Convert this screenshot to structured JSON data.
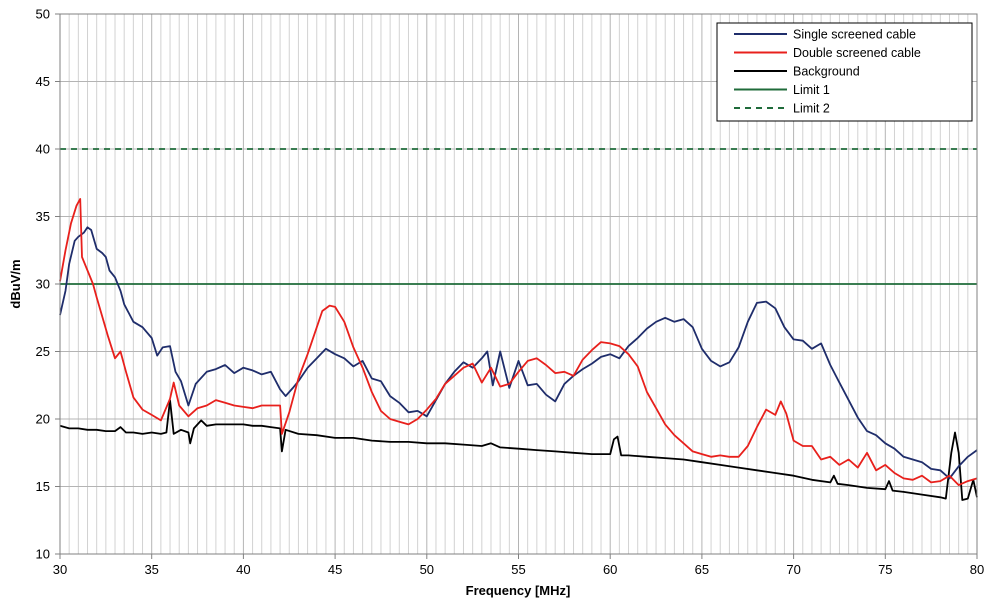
{
  "chart_data": {
    "type": "line",
    "xlabel": "Frequency [MHz]",
    "ylabel": "dBuV/m",
    "xlim": [
      30,
      80
    ],
    "ylim": [
      10,
      50
    ],
    "x_ticks": [
      30,
      35,
      40,
      45,
      50,
      55,
      60,
      65,
      70,
      75,
      80
    ],
    "y_ticks": [
      10,
      15,
      20,
      25,
      30,
      35,
      40,
      45,
      50
    ],
    "grid": "vertical minor every 0.5 MHz, horizontal every 5 dB",
    "legend_position": "top-right",
    "series": [
      {
        "name": "Single screened cable",
        "color": "#1f2d6b",
        "style": "solid",
        "points": [
          [
            30,
            27.7
          ],
          [
            30.3,
            29.5
          ],
          [
            30.5,
            31.5
          ],
          [
            30.8,
            33.2
          ],
          [
            31,
            33.5
          ],
          [
            31.3,
            33.8
          ],
          [
            31.5,
            34.2
          ],
          [
            31.7,
            34.0
          ],
          [
            32,
            32.6
          ],
          [
            32.3,
            32.3
          ],
          [
            32.5,
            32.0
          ],
          [
            32.7,
            31.0
          ],
          [
            33,
            30.5
          ],
          [
            33.3,
            29.5
          ],
          [
            33.5,
            28.5
          ],
          [
            34,
            27.2
          ],
          [
            34.5,
            26.8
          ],
          [
            35,
            26.0
          ],
          [
            35.3,
            24.7
          ],
          [
            35.6,
            25.3
          ],
          [
            36,
            25.4
          ],
          [
            36.3,
            23.5
          ],
          [
            36.6,
            22.8
          ],
          [
            37,
            21.0
          ],
          [
            37.4,
            22.6
          ],
          [
            38,
            23.5
          ],
          [
            38.5,
            23.7
          ],
          [
            39,
            24.0
          ],
          [
            39.5,
            23.4
          ],
          [
            40,
            23.8
          ],
          [
            40.5,
            23.6
          ],
          [
            41,
            23.3
          ],
          [
            41.5,
            23.5
          ],
          [
            42,
            22.2
          ],
          [
            42.3,
            21.7
          ],
          [
            42.7,
            22.3
          ],
          [
            43,
            22.8
          ],
          [
            43.5,
            23.8
          ],
          [
            44,
            24.5
          ],
          [
            44.5,
            25.2
          ],
          [
            45,
            24.8
          ],
          [
            45.5,
            24.5
          ],
          [
            46,
            23.9
          ],
          [
            46.5,
            24.3
          ],
          [
            47,
            23.0
          ],
          [
            47.5,
            22.8
          ],
          [
            48,
            21.7
          ],
          [
            48.5,
            21.2
          ],
          [
            49,
            20.5
          ],
          [
            49.5,
            20.6
          ],
          [
            50,
            20.2
          ],
          [
            50.5,
            21.4
          ],
          [
            51,
            22.6
          ],
          [
            51.5,
            23.5
          ],
          [
            52,
            24.2
          ],
          [
            52.5,
            23.8
          ],
          [
            53,
            24.5
          ],
          [
            53.3,
            25.0
          ],
          [
            53.6,
            22.5
          ],
          [
            54,
            25.0
          ],
          [
            54.5,
            22.3
          ],
          [
            55,
            24.3
          ],
          [
            55.5,
            22.5
          ],
          [
            56,
            22.6
          ],
          [
            56.5,
            21.8
          ],
          [
            57,
            21.3
          ],
          [
            57.5,
            22.6
          ],
          [
            58,
            23.2
          ],
          [
            58.5,
            23.7
          ],
          [
            59,
            24.1
          ],
          [
            59.5,
            24.6
          ],
          [
            60,
            24.8
          ],
          [
            60.5,
            24.5
          ],
          [
            61,
            25.4
          ],
          [
            61.5,
            26.0
          ],
          [
            62,
            26.7
          ],
          [
            62.5,
            27.2
          ],
          [
            63,
            27.5
          ],
          [
            63.5,
            27.2
          ],
          [
            64,
            27.4
          ],
          [
            64.5,
            26.8
          ],
          [
            65,
            25.2
          ],
          [
            65.5,
            24.3
          ],
          [
            66,
            23.9
          ],
          [
            66.5,
            24.2
          ],
          [
            67,
            25.3
          ],
          [
            67.5,
            27.2
          ],
          [
            68,
            28.6
          ],
          [
            68.5,
            28.7
          ],
          [
            69,
            28.2
          ],
          [
            69.5,
            26.8
          ],
          [
            70,
            25.9
          ],
          [
            70.5,
            25.8
          ],
          [
            71,
            25.2
          ],
          [
            71.5,
            25.6
          ],
          [
            72,
            24.0
          ],
          [
            72.5,
            22.7
          ],
          [
            73,
            21.4
          ],
          [
            73.5,
            20.1
          ],
          [
            74,
            19.1
          ],
          [
            74.5,
            18.8
          ],
          [
            75,
            18.2
          ],
          [
            75.5,
            17.8
          ],
          [
            76,
            17.2
          ],
          [
            76.5,
            17.0
          ],
          [
            77,
            16.8
          ],
          [
            77.5,
            16.3
          ],
          [
            78,
            16.2
          ],
          [
            78.5,
            15.6
          ],
          [
            79,
            16.5
          ],
          [
            79.5,
            17.2
          ],
          [
            80,
            17.7
          ]
        ]
      },
      {
        "name": "Double screened cable",
        "color": "#e8201c",
        "style": "solid",
        "points": [
          [
            30,
            30.2
          ],
          [
            30.3,
            32.5
          ],
          [
            30.6,
            34.5
          ],
          [
            30.9,
            35.8
          ],
          [
            31.1,
            36.3
          ],
          [
            31.2,
            32.0
          ],
          [
            31.5,
            31.0
          ],
          [
            31.8,
            30.0
          ],
          [
            32,
            29.0
          ],
          [
            32.3,
            27.6
          ],
          [
            32.6,
            26.2
          ],
          [
            33,
            24.5
          ],
          [
            33.3,
            25.0
          ],
          [
            33.6,
            23.5
          ],
          [
            34,
            21.6
          ],
          [
            34.5,
            20.7
          ],
          [
            35,
            20.3
          ],
          [
            35.5,
            19.9
          ],
          [
            36,
            21.5
          ],
          [
            36.2,
            22.7
          ],
          [
            36.5,
            21.0
          ],
          [
            37,
            20.2
          ],
          [
            37.5,
            20.8
          ],
          [
            38,
            21.0
          ],
          [
            38.5,
            21.4
          ],
          [
            39,
            21.2
          ],
          [
            39.5,
            21.0
          ],
          [
            40,
            20.9
          ],
          [
            40.5,
            20.8
          ],
          [
            41,
            21.0
          ],
          [
            41.5,
            21.0
          ],
          [
            42,
            21.0
          ],
          [
            42.1,
            18.9
          ],
          [
            42.5,
            20.5
          ],
          [
            43,
            23.0
          ],
          [
            43.5,
            24.8
          ],
          [
            44,
            26.8
          ],
          [
            44.3,
            28.0
          ],
          [
            44.7,
            28.4
          ],
          [
            45,
            28.3
          ],
          [
            45.5,
            27.2
          ],
          [
            46,
            25.3
          ],
          [
            46.5,
            23.8
          ],
          [
            47,
            22.0
          ],
          [
            47.5,
            20.6
          ],
          [
            48,
            20.0
          ],
          [
            48.5,
            19.8
          ],
          [
            49,
            19.6
          ],
          [
            49.5,
            20.0
          ],
          [
            50,
            20.7
          ],
          [
            50.5,
            21.5
          ],
          [
            51,
            22.6
          ],
          [
            51.5,
            23.2
          ],
          [
            52,
            23.8
          ],
          [
            52.5,
            24.1
          ],
          [
            53,
            22.7
          ],
          [
            53.5,
            23.8
          ],
          [
            54,
            22.4
          ],
          [
            54.5,
            22.6
          ],
          [
            55,
            23.5
          ],
          [
            55.5,
            24.3
          ],
          [
            56,
            24.5
          ],
          [
            56.5,
            24.0
          ],
          [
            57,
            23.4
          ],
          [
            57.5,
            23.5
          ],
          [
            58,
            23.2
          ],
          [
            58.5,
            24.4
          ],
          [
            59,
            25.1
          ],
          [
            59.5,
            25.7
          ],
          [
            60,
            25.6
          ],
          [
            60.5,
            25.4
          ],
          [
            61,
            24.8
          ],
          [
            61.5,
            23.9
          ],
          [
            62,
            22.0
          ],
          [
            62.5,
            20.8
          ],
          [
            63,
            19.6
          ],
          [
            63.5,
            18.8
          ],
          [
            64,
            18.2
          ],
          [
            64.5,
            17.6
          ],
          [
            65,
            17.4
          ],
          [
            65.5,
            17.2
          ],
          [
            66,
            17.3
          ],
          [
            66.5,
            17.2
          ],
          [
            67,
            17.2
          ],
          [
            67.5,
            18.0
          ],
          [
            68,
            19.4
          ],
          [
            68.5,
            20.7
          ],
          [
            69,
            20.3
          ],
          [
            69.3,
            21.3
          ],
          [
            69.6,
            20.4
          ],
          [
            70,
            18.4
          ],
          [
            70.5,
            18.0
          ],
          [
            71,
            18.0
          ],
          [
            71.5,
            17.0
          ],
          [
            72,
            17.2
          ],
          [
            72.5,
            16.6
          ],
          [
            73,
            17.0
          ],
          [
            73.5,
            16.4
          ],
          [
            74,
            17.5
          ],
          [
            74.5,
            16.2
          ],
          [
            75,
            16.6
          ],
          [
            75.5,
            16.0
          ],
          [
            76,
            15.6
          ],
          [
            76.5,
            15.5
          ],
          [
            77,
            15.8
          ],
          [
            77.5,
            15.3
          ],
          [
            78,
            15.4
          ],
          [
            78.5,
            15.8
          ],
          [
            79,
            15.1
          ],
          [
            79.5,
            15.4
          ],
          [
            80,
            15.6
          ]
        ]
      },
      {
        "name": "Background",
        "color": "#000000",
        "style": "solid",
        "points": [
          [
            30,
            19.5
          ],
          [
            30.5,
            19.3
          ],
          [
            31,
            19.3
          ],
          [
            31.5,
            19.2
          ],
          [
            32,
            19.2
          ],
          [
            32.5,
            19.1
          ],
          [
            33,
            19.1
          ],
          [
            33.3,
            19.4
          ],
          [
            33.6,
            19.0
          ],
          [
            34,
            19.0
          ],
          [
            34.5,
            18.9
          ],
          [
            35,
            19.0
          ],
          [
            35.5,
            18.9
          ],
          [
            35.8,
            19.0
          ],
          [
            36,
            21.4
          ],
          [
            36.2,
            18.9
          ],
          [
            36.6,
            19.2
          ],
          [
            37,
            19.0
          ],
          [
            37.1,
            18.2
          ],
          [
            37.3,
            19.3
          ],
          [
            37.7,
            19.9
          ],
          [
            38,
            19.5
          ],
          [
            38.5,
            19.6
          ],
          [
            39,
            19.6
          ],
          [
            39.5,
            19.6
          ],
          [
            40,
            19.6
          ],
          [
            40.5,
            19.5
          ],
          [
            41,
            19.5
          ],
          [
            41.5,
            19.4
          ],
          [
            42,
            19.3
          ],
          [
            42.1,
            17.6
          ],
          [
            42.3,
            19.2
          ],
          [
            43,
            18.9
          ],
          [
            44,
            18.8
          ],
          [
            45,
            18.6
          ],
          [
            46,
            18.6
          ],
          [
            47,
            18.4
          ],
          [
            48,
            18.3
          ],
          [
            49,
            18.3
          ],
          [
            50,
            18.2
          ],
          [
            51,
            18.2
          ],
          [
            52,
            18.1
          ],
          [
            53,
            18.0
          ],
          [
            53.5,
            18.2
          ],
          [
            54,
            17.9
          ],
          [
            55,
            17.8
          ],
          [
            56,
            17.7
          ],
          [
            57,
            17.6
          ],
          [
            58,
            17.5
          ],
          [
            59,
            17.4
          ],
          [
            60,
            17.4
          ],
          [
            60.2,
            18.5
          ],
          [
            60.4,
            18.7
          ],
          [
            60.6,
            17.3
          ],
          [
            61,
            17.3
          ],
          [
            62,
            17.2
          ],
          [
            63,
            17.1
          ],
          [
            64,
            17.0
          ],
          [
            65,
            16.8
          ],
          [
            66,
            16.6
          ],
          [
            67,
            16.4
          ],
          [
            68,
            16.2
          ],
          [
            69,
            16.0
          ],
          [
            70,
            15.8
          ],
          [
            71,
            15.5
          ],
          [
            72,
            15.3
          ],
          [
            72.2,
            15.8
          ],
          [
            72.4,
            15.2
          ],
          [
            73,
            15.1
          ],
          [
            74,
            14.9
          ],
          [
            75,
            14.8
          ],
          [
            75.2,
            15.4
          ],
          [
            75.4,
            14.7
          ],
          [
            76,
            14.6
          ],
          [
            77,
            14.4
          ],
          [
            78,
            14.2
          ],
          [
            78.3,
            14.1
          ],
          [
            78.6,
            17.5
          ],
          [
            78.8,
            19.0
          ],
          [
            79,
            17.5
          ],
          [
            79.2,
            14.0
          ],
          [
            79.5,
            14.1
          ],
          [
            79.8,
            15.5
          ],
          [
            80,
            14.2
          ]
        ]
      },
      {
        "name": "Limit 1",
        "color": "#1f6b3a",
        "style": "solid",
        "points": [
          [
            30,
            30
          ],
          [
            80,
            30
          ]
        ]
      },
      {
        "name": "Limit 2",
        "color": "#1f6b3a",
        "style": "dashed",
        "points": [
          [
            30,
            40
          ],
          [
            80,
            40
          ]
        ]
      }
    ]
  }
}
